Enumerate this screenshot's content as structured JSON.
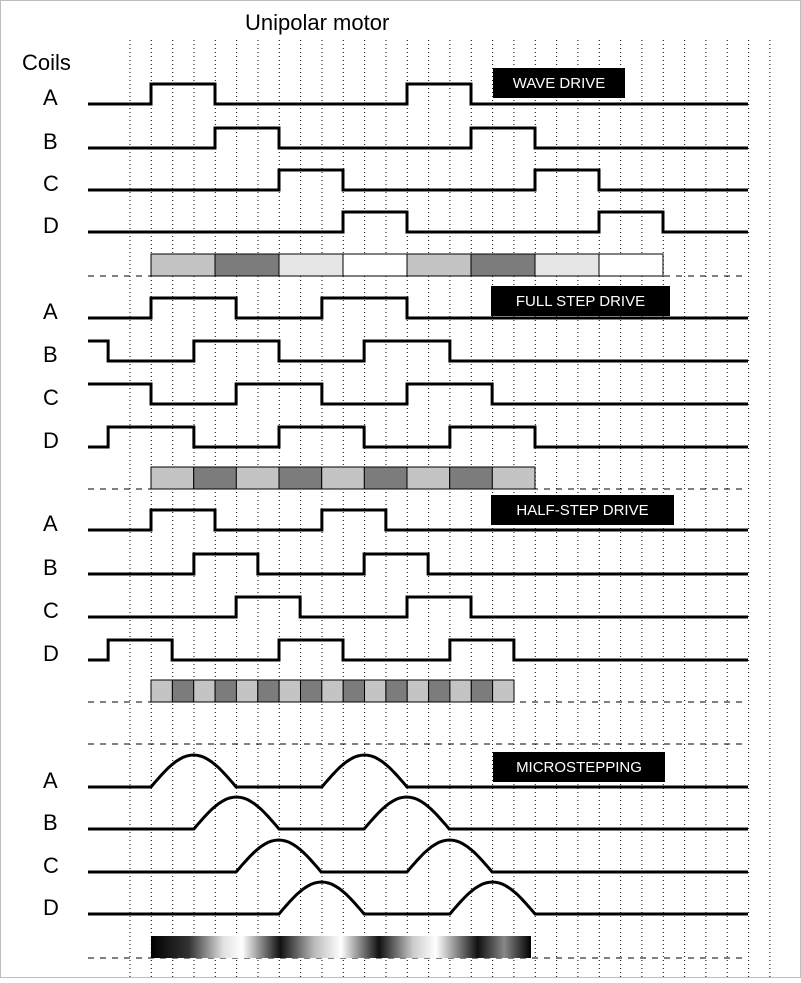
{
  "title": "Unipolar motor",
  "coils_label": "Coils",
  "panels": [
    {
      "mode": "WAVE DRIVE",
      "coils": [
        {
          "name": "A",
          "on": [
            [
              1,
              2
            ],
            [
              5,
              6
            ]
          ]
        },
        {
          "name": "B",
          "on": [
            [
              2,
              3
            ],
            [
              6,
              7
            ]
          ]
        },
        {
          "name": "C",
          "on": [
            [
              3,
              4
            ],
            [
              7,
              8
            ]
          ]
        },
        {
          "name": "D",
          "on": [
            [
              4,
              5
            ],
            [
              8,
              9
            ]
          ]
        }
      ],
      "position_bar": [
        "#c4c4c4",
        "#7c7c7c",
        "#e6e6e6",
        "#ffffff",
        "#c4c4c4",
        "#7c7c7c",
        "#e6e6e6",
        "#ffffff"
      ]
    },
    {
      "mode": "FULL STEP DRIVE",
      "coils": [
        {
          "name": "A",
          "on": [
            [
              1,
              2.33
            ],
            [
              3.67,
              5
            ]
          ]
        },
        {
          "name": "B",
          "on": [
            [
              -0.33,
              0.33
            ],
            [
              1.67,
              3
            ],
            [
              4.33,
              5.67
            ]
          ]
        },
        {
          "name": "C",
          "on": [
            [
              -0.33,
              1
            ],
            [
              2.33,
              3.67
            ],
            [
              5,
              6.33
            ]
          ]
        },
        {
          "name": "D",
          "on": [
            [
              0.33,
              1.67
            ],
            [
              3,
              4.33
            ],
            [
              5.67,
              7
            ]
          ]
        }
      ],
      "position_bar": [
        "#c4c4c4",
        "#7c7c7c",
        "#c4c4c4",
        "#7c7c7c",
        "#c4c4c4",
        "#7c7c7c",
        "#c4c4c4",
        "#7c7c7c",
        "#c4c4c4"
      ]
    },
    {
      "mode": "HALF-STEP DRIVE",
      "coils": [
        {
          "name": "A",
          "on": [
            [
              1,
              2
            ],
            [
              3.67,
              4.67
            ]
          ]
        },
        {
          "name": "B",
          "on": [
            [
              1.67,
              2.67
            ],
            [
              4.33,
              5.33
            ]
          ]
        },
        {
          "name": "C",
          "on": [
            [
              2.33,
              3.33
            ],
            [
              5,
              6
            ]
          ]
        },
        {
          "name": "D",
          "on": [
            [
              0.33,
              1.33
            ],
            [
              3,
              4
            ],
            [
              5.67,
              6.67
            ]
          ]
        }
      ],
      "position_bar": [
        "#c4c4c4",
        "#7c7c7c",
        "#c4c4c4",
        "#7c7c7c",
        "#c4c4c4",
        "#7c7c7c",
        "#c4c4c4",
        "#7c7c7c",
        "#c4c4c4",
        "#7c7c7c",
        "#c4c4c4",
        "#7c7c7c",
        "#c4c4c4",
        "#7c7c7c",
        "#c4c4c4",
        "#7c7c7c",
        "#c4c4c4"
      ]
    },
    {
      "mode": "MICROSTEPPING",
      "coils": [
        {
          "name": "A",
          "bumps": [
            1,
            3.67
          ]
        },
        {
          "name": "B",
          "bumps": [
            1.67,
            4.33
          ]
        },
        {
          "name": "C",
          "bumps": [
            2.33,
            5
          ]
        },
        {
          "name": "D",
          "bumps": [
            3,
            5.67
          ]
        }
      ],
      "bump_width": 1.33
    }
  ]
}
